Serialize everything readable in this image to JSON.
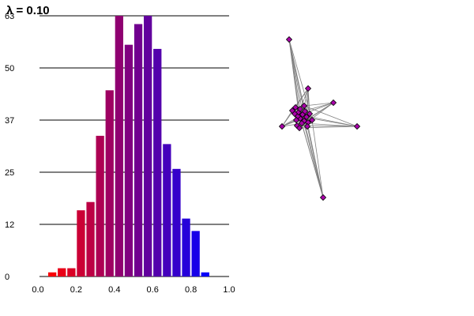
{
  "title": "λ = 0.10",
  "chart_data": [
    {
      "type": "bar",
      "title": "",
      "xlabel": "",
      "ylabel": "",
      "x": [
        0.075,
        0.125,
        0.175,
        0.225,
        0.275,
        0.325,
        0.375,
        0.425,
        0.475,
        0.525,
        0.575,
        0.625,
        0.675,
        0.725,
        0.775,
        0.825,
        0.875
      ],
      "values": [
        1,
        2,
        2,
        16,
        18,
        34,
        45,
        63,
        56,
        61,
        63,
        55,
        32,
        26,
        14,
        11,
        1
      ],
      "xlim": [
        0.0,
        1.0
      ],
      "ylim": [
        0,
        63
      ],
      "xticks": [
        "0.0",
        "0.2",
        "0.4",
        "0.6",
        "0.8",
        "1.0"
      ],
      "yticks": [
        "0",
        "12",
        "25",
        "37",
        "50",
        "63"
      ],
      "ytick_values": [
        0,
        12.6,
        25.2,
        37.8,
        50.4,
        63
      ],
      "grid": "horizontal",
      "color_gradient": {
        "low": "#ff0000",
        "high": "#0000ff"
      }
    },
    {
      "type": "network",
      "node_color": "#aa00aa",
      "edge_color": "#808080",
      "outer_nodes": [
        {
          "x": -0.14,
          "y": 1.0
        },
        {
          "x": 0.72,
          "y": -0.1
        },
        {
          "x": -0.23,
          "y": -0.1
        },
        {
          "x": 0.29,
          "y": -1.0
        },
        {
          "x": 0.42,
          "y": 0.2
        },
        {
          "x": 0.1,
          "y": 0.38
        }
      ],
      "core_nodes": [
        {
          "x": 0.0,
          "y": 0.0
        },
        {
          "x": 0.03,
          "y": 0.05
        },
        {
          "x": -0.03,
          "y": 0.03
        },
        {
          "x": 0.05,
          "y": -0.03
        },
        {
          "x": -0.05,
          "y": -0.02
        },
        {
          "x": 0.02,
          "y": -0.06
        },
        {
          "x": -0.02,
          "y": 0.08
        },
        {
          "x": 0.08,
          "y": 0.02
        },
        {
          "x": -0.07,
          "y": 0.06
        },
        {
          "x": 0.06,
          "y": 0.09
        },
        {
          "x": 0.1,
          "y": -0.05
        },
        {
          "x": -0.04,
          "y": -0.09
        },
        {
          "x": 0.0,
          "y": 0.12
        },
        {
          "x": 0.12,
          "y": 0.06
        },
        {
          "x": -0.01,
          "y": -0.12
        },
        {
          "x": 0.09,
          "y": -0.1
        },
        {
          "x": -0.1,
          "y": 0.1
        },
        {
          "x": 0.05,
          "y": 0.16
        },
        {
          "x": 0.15,
          "y": -0.02
        },
        {
          "x": -0.06,
          "y": 0.14
        }
      ]
    }
  ]
}
